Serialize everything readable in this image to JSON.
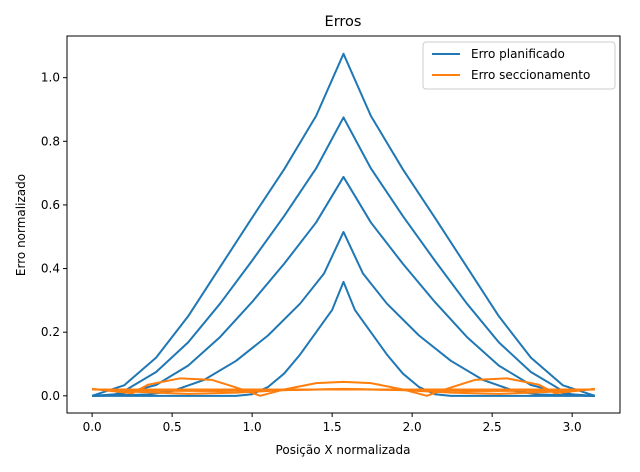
{
  "chart_data": {
    "type": "line",
    "title": "Erros",
    "xlabel": "Posição X normalizada",
    "ylabel": "Erro normalizado",
    "xlim": [
      -0.157,
      3.299
    ],
    "ylim": [
      -0.054,
      1.131
    ],
    "xticks": [
      0.0,
      0.5,
      1.0,
      1.5,
      2.0,
      2.5,
      3.0
    ],
    "xtick_labels": [
      "0.0",
      "0.5",
      "1.0",
      "1.5",
      "2.0",
      "2.5",
      "3.0"
    ],
    "yticks": [
      0.0,
      0.2,
      0.4,
      0.6,
      0.8,
      1.0
    ],
    "ytick_labels": [
      "0.0",
      "0.2",
      "0.4",
      "0.6",
      "0.8",
      "1.0"
    ],
    "grid": false,
    "legend_position": "top-right",
    "legend": [
      {
        "label": "Erro planificado",
        "color": "#1f77b4"
      },
      {
        "label": "Erro seccionamento",
        "color": "#ff7f0e"
      }
    ],
    "series": [
      {
        "group": "Erro planificado",
        "color": "#1f77b4",
        "points": [
          [
            0.0,
            0.0
          ],
          [
            0.2,
            0.033
          ],
          [
            0.4,
            0.12
          ],
          [
            0.6,
            0.25
          ],
          [
            0.8,
            0.405
          ],
          [
            1.0,
            0.56
          ],
          [
            1.2,
            0.712
          ],
          [
            1.4,
            0.88
          ],
          [
            1.571,
            1.075
          ],
          [
            1.742,
            0.88
          ],
          [
            1.942,
            0.712
          ],
          [
            2.142,
            0.56
          ],
          [
            2.342,
            0.405
          ],
          [
            2.542,
            0.25
          ],
          [
            2.742,
            0.12
          ],
          [
            2.942,
            0.033
          ],
          [
            3.142,
            0.0
          ]
        ]
      },
      {
        "group": "Erro planificado",
        "color": "#1f77b4",
        "points": [
          [
            0.0,
            0.0
          ],
          [
            0.13,
            0.002
          ],
          [
            0.2,
            0.015
          ],
          [
            0.4,
            0.075
          ],
          [
            0.6,
            0.168
          ],
          [
            0.8,
            0.29
          ],
          [
            1.0,
            0.425
          ],
          [
            1.2,
            0.565
          ],
          [
            1.4,
            0.715
          ],
          [
            1.571,
            0.875
          ],
          [
            1.742,
            0.715
          ],
          [
            1.942,
            0.565
          ],
          [
            2.142,
            0.425
          ],
          [
            2.342,
            0.29
          ],
          [
            2.542,
            0.168
          ],
          [
            2.742,
            0.075
          ],
          [
            2.942,
            0.015
          ],
          [
            3.01,
            0.002
          ],
          [
            3.142,
            0.0
          ]
        ]
      },
      {
        "group": "Erro planificado",
        "color": "#1f77b4",
        "points": [
          [
            0.0,
            0.0
          ],
          [
            0.18,
            0.006
          ],
          [
            0.4,
            0.034
          ],
          [
            0.6,
            0.095
          ],
          [
            0.8,
            0.185
          ],
          [
            1.0,
            0.295
          ],
          [
            1.2,
            0.415
          ],
          [
            1.4,
            0.545
          ],
          [
            1.571,
            0.688
          ],
          [
            1.742,
            0.545
          ],
          [
            1.942,
            0.415
          ],
          [
            2.142,
            0.295
          ],
          [
            2.342,
            0.185
          ],
          [
            2.542,
            0.095
          ],
          [
            2.742,
            0.034
          ],
          [
            2.96,
            0.006
          ],
          [
            3.142,
            0.0
          ]
        ]
      },
      {
        "group": "Erro planificado",
        "color": "#1f77b4",
        "points": [
          [
            0.0,
            0.0
          ],
          [
            0.35,
            0.004
          ],
          [
            0.5,
            0.015
          ],
          [
            0.7,
            0.05
          ],
          [
            0.9,
            0.11
          ],
          [
            1.1,
            0.19
          ],
          [
            1.3,
            0.29
          ],
          [
            1.45,
            0.385
          ],
          [
            1.571,
            0.515
          ],
          [
            1.692,
            0.385
          ],
          [
            1.842,
            0.29
          ],
          [
            2.042,
            0.19
          ],
          [
            2.242,
            0.11
          ],
          [
            2.442,
            0.05
          ],
          [
            2.642,
            0.015
          ],
          [
            2.79,
            0.004
          ],
          [
            3.142,
            0.0
          ]
        ]
      },
      {
        "group": "Erro planificado",
        "color": "#1f77b4",
        "points": [
          [
            0.0,
            0.0
          ],
          [
            0.9,
            0.0
          ],
          [
            1.0,
            0.005
          ],
          [
            1.1,
            0.028
          ],
          [
            1.2,
            0.07
          ],
          [
            1.3,
            0.13
          ],
          [
            1.4,
            0.2
          ],
          [
            1.5,
            0.27
          ],
          [
            1.571,
            0.358
          ],
          [
            1.642,
            0.27
          ],
          [
            1.742,
            0.2
          ],
          [
            1.842,
            0.13
          ],
          [
            1.942,
            0.07
          ],
          [
            2.042,
            0.028
          ],
          [
            2.142,
            0.005
          ],
          [
            2.242,
            0.0
          ],
          [
            3.142,
            0.0
          ]
        ]
      },
      {
        "group": "Erro seccionamento",
        "color": "#ff7f0e",
        "points": [
          [
            0.0,
            0.022
          ],
          [
            0.25,
            0.008
          ],
          [
            0.35,
            0.035
          ],
          [
            0.55,
            0.055
          ],
          [
            0.75,
            0.05
          ],
          [
            0.95,
            0.018
          ],
          [
            1.05,
            0.0
          ],
          [
            1.2,
            0.02
          ],
          [
            1.4,
            0.04
          ],
          [
            1.571,
            0.044
          ],
          [
            1.742,
            0.04
          ],
          [
            1.942,
            0.02
          ],
          [
            2.092,
            0.0
          ],
          [
            2.192,
            0.018
          ],
          [
            2.392,
            0.05
          ],
          [
            2.592,
            0.055
          ],
          [
            2.792,
            0.035
          ],
          [
            2.892,
            0.008
          ],
          [
            3.142,
            0.022
          ]
        ]
      },
      {
        "group": "Erro seccionamento",
        "color": "#ff7f0e",
        "points": [
          [
            0.0,
            0.021
          ],
          [
            0.3,
            0.012
          ],
          [
            0.6,
            0.006
          ],
          [
            0.9,
            0.01
          ],
          [
            1.2,
            0.018
          ],
          [
            1.571,
            0.022
          ],
          [
            1.942,
            0.018
          ],
          [
            2.242,
            0.01
          ],
          [
            2.542,
            0.006
          ],
          [
            2.842,
            0.012
          ],
          [
            3.142,
            0.021
          ]
        ]
      },
      {
        "group": "Erro seccionamento",
        "color": "#ff7f0e",
        "points": [
          [
            0.0,
            0.02
          ],
          [
            0.4,
            0.016
          ],
          [
            0.8,
            0.015
          ],
          [
            1.2,
            0.018
          ],
          [
            1.571,
            0.021
          ],
          [
            1.942,
            0.018
          ],
          [
            2.342,
            0.015
          ],
          [
            2.742,
            0.016
          ],
          [
            3.142,
            0.02
          ]
        ]
      },
      {
        "group": "Erro seccionamento",
        "color": "#ff7f0e",
        "points": [
          [
            0.0,
            0.02
          ],
          [
            0.5,
            0.019
          ],
          [
            1.0,
            0.02
          ],
          [
            1.571,
            0.02
          ],
          [
            2.142,
            0.02
          ],
          [
            2.642,
            0.019
          ],
          [
            3.142,
            0.02
          ]
        ]
      },
      {
        "group": "Erro seccionamento",
        "color": "#ff7f0e",
        "points": [
          [
            0.0,
            0.02
          ],
          [
            1.571,
            0.02
          ],
          [
            3.142,
            0.02
          ]
        ]
      }
    ]
  }
}
